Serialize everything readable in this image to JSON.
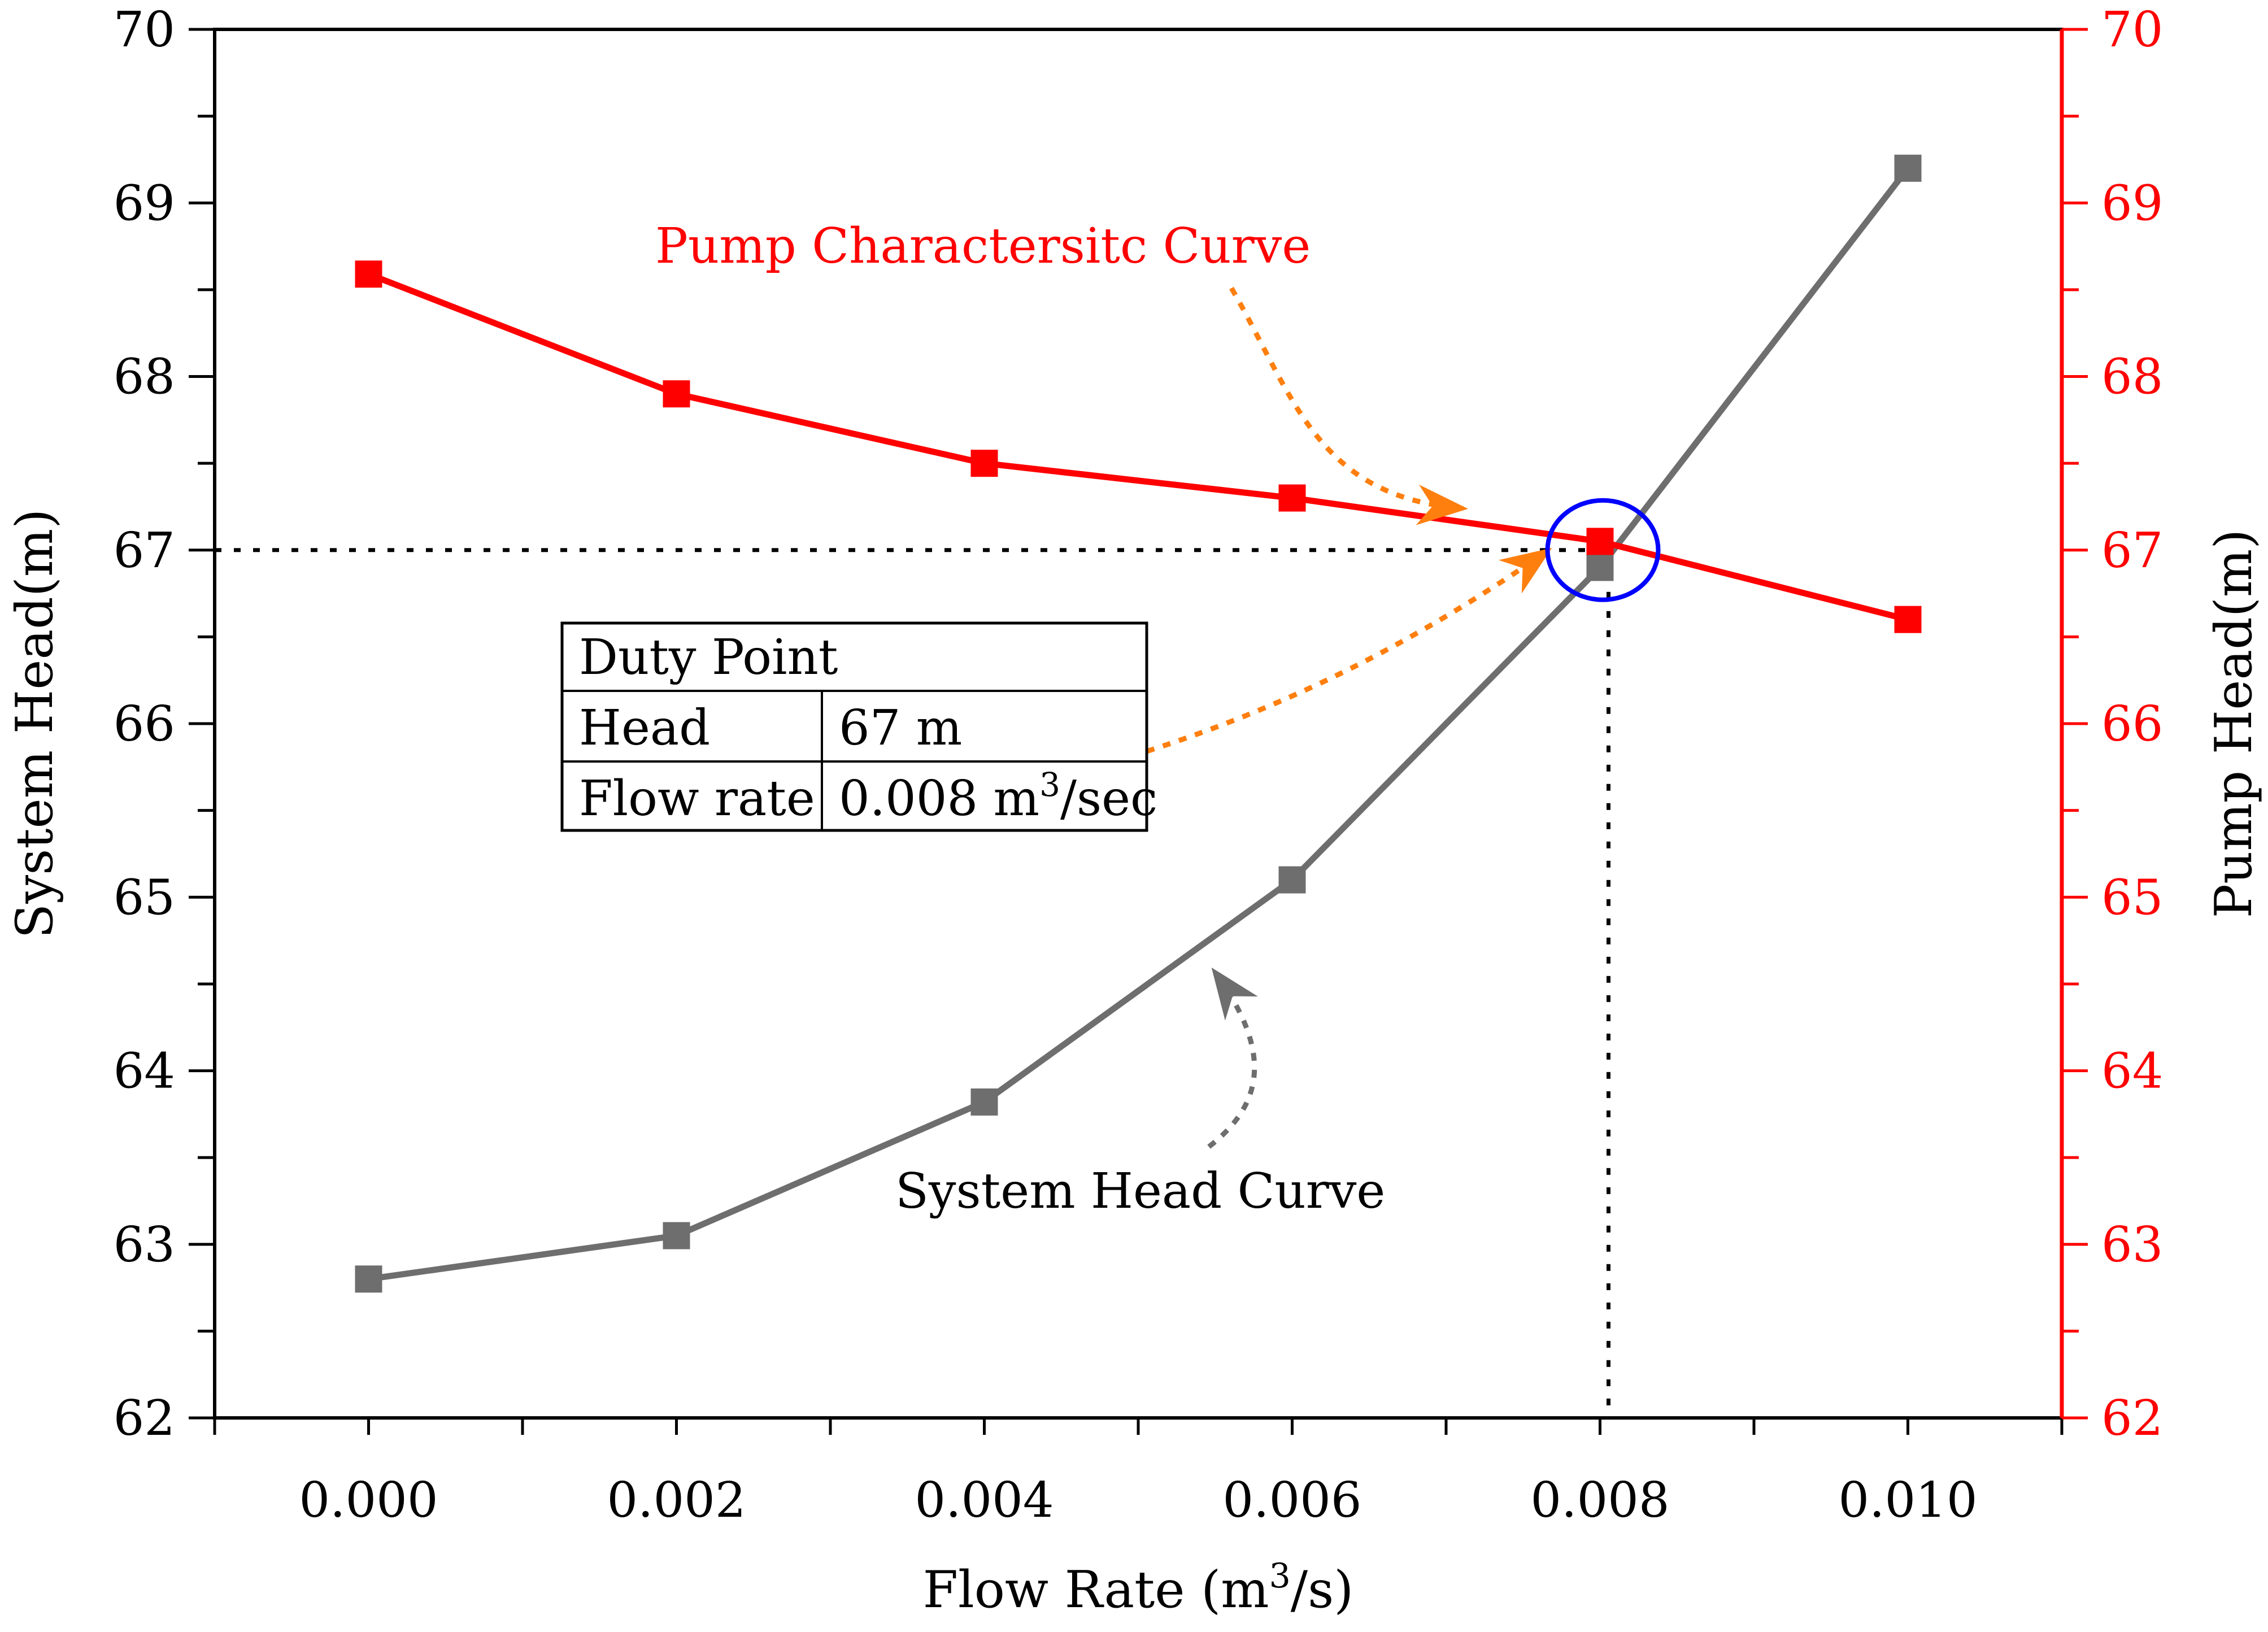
{
  "chart_data": {
    "type": "line",
    "x": [
      0.0,
      0.002,
      0.004,
      0.006,
      0.008,
      0.01
    ],
    "x_tick_labels": [
      "0.000",
      "0.002",
      "0.004",
      "0.006",
      "0.008",
      "0.010"
    ],
    "xlim": [
      -0.001,
      0.011
    ],
    "xlabel": "Flow Rate (m",
    "xlabel_sup": "3",
    "xlabel_tail": "/s)",
    "y_left": {
      "label": "System Head(m)",
      "lim": [
        62,
        70
      ],
      "ticks": [
        "62",
        "63",
        "64",
        "65",
        "66",
        "67",
        "68",
        "69",
        "70"
      ],
      "color": "#000000"
    },
    "y_right": {
      "label": "Pump Head(m)",
      "lim": [
        62,
        70
      ],
      "ticks": [
        "62",
        "63",
        "64",
        "65",
        "66",
        "67",
        "68",
        "69",
        "70"
      ],
      "color": "#ff0000"
    },
    "series": [
      {
        "name": "System Head Curve",
        "axis": "left",
        "color": "#6e6e6e",
        "values": [
          62.8,
          63.05,
          63.82,
          65.1,
          66.9,
          69.2
        ]
      },
      {
        "name": "Pump Characteristic Curve",
        "axis": "right",
        "color": "#ff0000",
        "values": [
          68.59,
          67.9,
          67.5,
          67.3,
          67.05,
          66.6
        ]
      }
    ],
    "annotations": {
      "pump_label": "Pump Charactersitc Curve",
      "system_label": "System Head Curve",
      "arrow_color": "#ff7f0e",
      "system_arrow_color": "#6e6e6e",
      "circle_color": "#0000ff",
      "duty_point": {
        "x": 0.008,
        "y": 67.0
      },
      "duty_table": {
        "title": "Duty Point",
        "head_label": "Head",
        "head_value": "67 m",
        "flow_label": "Flow rate",
        "flow_value": "0.008 m",
        "flow_value_sup": "3",
        "flow_value_tail": "/sec"
      }
    }
  }
}
